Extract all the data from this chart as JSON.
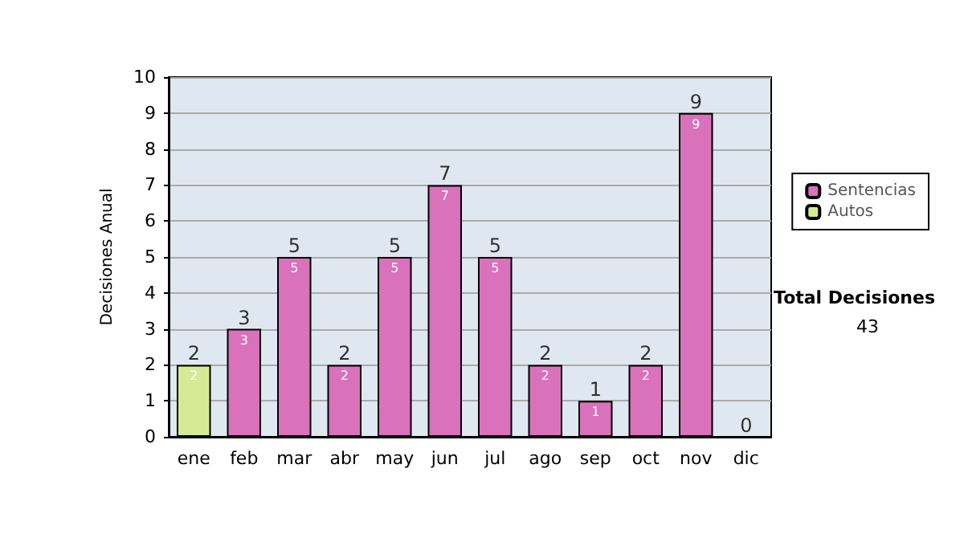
{
  "chart_data": {
    "type": "bar",
    "ylabel": "Decisiones Anual",
    "categories": [
      "ene",
      "feb",
      "mar",
      "abr",
      "may",
      "jun",
      "jul",
      "ago",
      "sep",
      "oct",
      "nov",
      "dic"
    ],
    "series": [
      {
        "name": "Sentencias",
        "color": "#d971bb",
        "values": [
          null,
          3,
          5,
          2,
          5,
          7,
          5,
          2,
          1,
          2,
          9,
          null
        ]
      },
      {
        "name": "Autos",
        "color": "#d4ea94",
        "values": [
          2,
          null,
          null,
          null,
          null,
          null,
          null,
          null,
          null,
          null,
          null,
          null
        ]
      }
    ],
    "stacked": true,
    "data_labels": true,
    "totals": [
      "2",
      "3",
      "5",
      "2",
      "5",
      "7",
      "5",
      "2",
      "1",
      "2",
      "9",
      "0"
    ],
    "ylim": [
      0,
      10
    ],
    "yticks": [
      0,
      1,
      2,
      3,
      4,
      5,
      6,
      7,
      8,
      9,
      10
    ],
    "grid": "y",
    "legend": "right",
    "annotations": [
      "Total Decisiones",
      "43"
    ]
  }
}
